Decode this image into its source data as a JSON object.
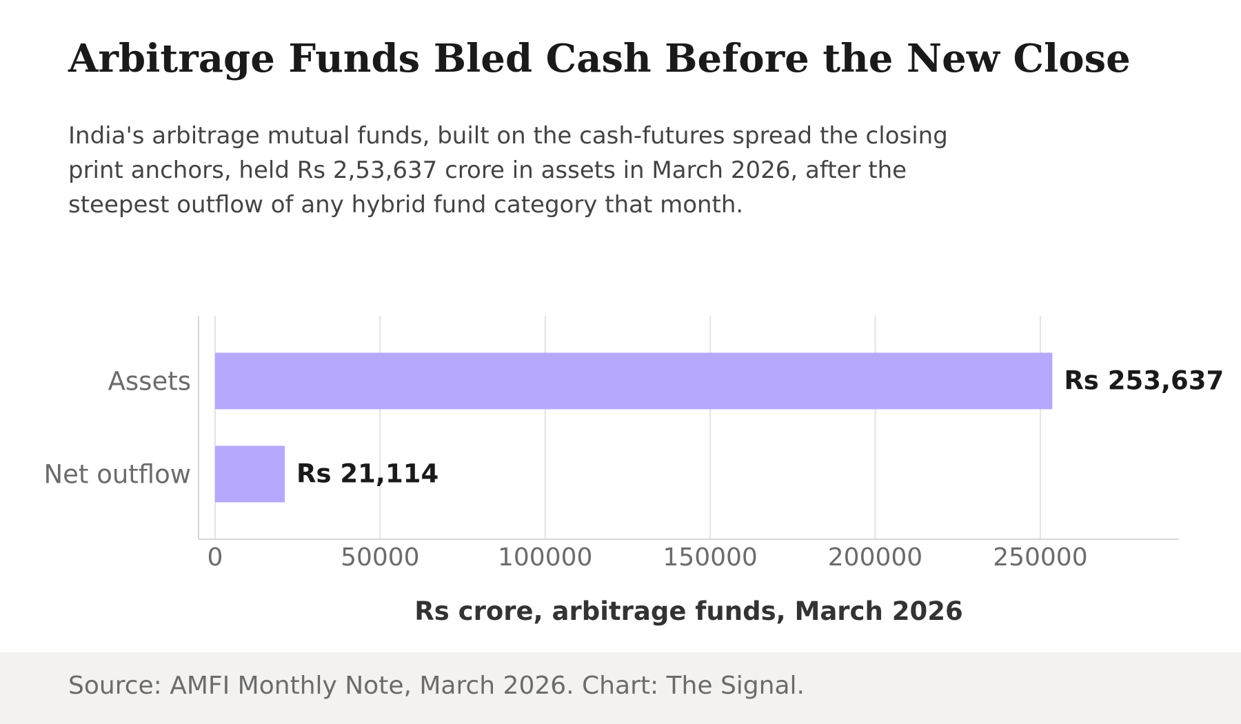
{
  "header": {
    "title": "Arbitrage Funds Bled Cash Before the New Close",
    "subtitle": "India's arbitrage mutual funds, built on the cash-futures spread the closing print anchors, held Rs 2,53,637 crore in assets in March 2026, after the steepest outflow of any hybrid fund category that month."
  },
  "footer": {
    "source": "Source: AMFI Monthly Note, March 2026. Chart: The Signal."
  },
  "chart_data": {
    "type": "bar",
    "orientation": "horizontal",
    "categories": [
      "Assets",
      "Net outflow"
    ],
    "values": [
      253637,
      21114
    ],
    "data_labels": [
      "Rs 253,637",
      "Rs 21,114"
    ],
    "xlabel": "Rs crore, arbitrage funds, March 2026",
    "ylabel": "",
    "xlim": [
      -5000,
      292000
    ],
    "xticks": [
      0,
      50000,
      100000,
      150000,
      200000,
      250000
    ],
    "grid": "vertical",
    "legend": "none",
    "bar_color": "#b6a8fc"
  }
}
